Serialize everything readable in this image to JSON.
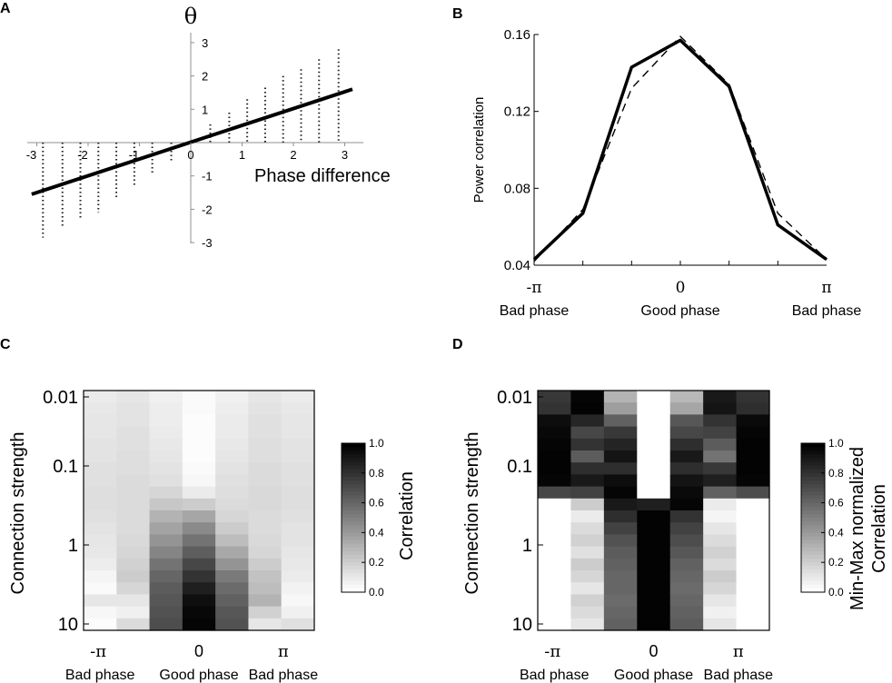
{
  "panels": {
    "A": {
      "letter": "A"
    },
    "B": {
      "letter": "B"
    },
    "C": {
      "letter": "C"
    },
    "D": {
      "letter": "D"
    }
  },
  "colors": {
    "ink": "#000000",
    "background": "#ffffff",
    "axis": "#909090",
    "dots": "#222222"
  },
  "chart_data": [
    {
      "panel": "A",
      "type": "scatter",
      "title": "θ",
      "xlabel": "Phase difference",
      "ylabel": "θ",
      "xlim": [
        -3.1,
        3.15
      ],
      "ylim": [
        -3.1,
        3.3
      ],
      "x_ticks": [
        -3,
        -2,
        -1,
        0,
        1,
        2,
        3
      ],
      "x_tick_labels": [
        "-3",
        "-2",
        "-1",
        "0",
        "1",
        "2",
        "3"
      ],
      "y_ticks": [
        -3,
        -2,
        -1,
        1,
        2,
        3
      ],
      "y_tick_labels": [
        "-3",
        "-2",
        "-1",
        "1",
        "2",
        "3"
      ],
      "scatter_columns": [
        {
          "x": -2.88,
          "y_min": -2.85,
          "y_max": 0.0
        },
        {
          "x": -2.5,
          "y_min": -2.55,
          "y_max": 0.0
        },
        {
          "x": -2.15,
          "y_min": -2.25,
          "y_max": 0.0
        },
        {
          "x": -1.8,
          "y_min": -2.1,
          "y_max": 0.0
        },
        {
          "x": -1.45,
          "y_min": -1.7,
          "y_max": 0.0
        },
        {
          "x": -1.1,
          "y_min": -1.35,
          "y_max": 0.0
        },
        {
          "x": -0.75,
          "y_min": -0.95,
          "y_max": 0.0
        },
        {
          "x": -0.38,
          "y_min": -0.6,
          "y_max": 0.0
        },
        {
          "x": 0.38,
          "y_min": 0.0,
          "y_max": 0.55
        },
        {
          "x": 0.75,
          "y_min": 0.0,
          "y_max": 0.9
        },
        {
          "x": 1.1,
          "y_min": 0.0,
          "y_max": 1.3
        },
        {
          "x": 1.45,
          "y_min": 0.0,
          "y_max": 1.65
        },
        {
          "x": 1.8,
          "y_min": 0.0,
          "y_max": 2.0
        },
        {
          "x": 2.15,
          "y_min": 0.0,
          "y_max": 2.2
        },
        {
          "x": 2.5,
          "y_min": 0.0,
          "y_max": 2.5
        },
        {
          "x": 2.88,
          "y_min": 0.0,
          "y_max": 2.8
        }
      ],
      "fit_line": {
        "x": [
          -3.1,
          3.15
        ],
        "y": [
          -1.55,
          1.6
        ]
      }
    },
    {
      "panel": "B",
      "type": "line",
      "xlabel": "",
      "ylabel": "Power correlation",
      "xlim": [
        -3.14159,
        3.14159
      ],
      "ylim": [
        0.04,
        0.16
      ],
      "y_ticks": [
        0.04,
        0.08,
        0.12,
        0.16
      ],
      "y_tick_labels": [
        "0.04",
        "0.08",
        "0.12",
        "0.16"
      ],
      "x_tick_labels": [
        "-π",
        "0",
        "π"
      ],
      "x_sublabels": [
        "Bad phase",
        "Good phase",
        "Bad phase"
      ],
      "x": [
        -3.14159,
        -2.0944,
        -1.0472,
        0,
        1.0472,
        2.0944,
        3.14159
      ],
      "series": [
        {
          "name": "solid",
          "style": "solid",
          "values": [
            0.043,
            0.067,
            0.143,
            0.157,
            0.133,
            0.061,
            0.043
          ]
        },
        {
          "name": "dashed",
          "style": "dashed",
          "values": [
            0.042,
            0.069,
            0.132,
            0.159,
            0.134,
            0.067,
            0.043
          ]
        }
      ]
    },
    {
      "panel": "C",
      "type": "heatmap",
      "ylabel": "Connection strength",
      "y_tick_labels": [
        "0.01",
        "0.1",
        "1",
        "10"
      ],
      "x_tick_labels": [
        "-π",
        "0",
        "π"
      ],
      "x_sublabels": [
        "Bad phase",
        "Good phase",
        "Bad phase"
      ],
      "colorbar": {
        "label": "Correlation",
        "range": [
          0.0,
          1.0
        ],
        "tick_labels": [
          "0.0",
          "0.2",
          "0.4",
          "0.6",
          "0.8",
          "1.0"
        ]
      },
      "columns": 7,
      "rows": 20,
      "row_labels_note": "rows ordered top (0.01) to bottom (10)",
      "values": [
        [
          0.08,
          0.1,
          0.06,
          0.02,
          0.06,
          0.1,
          0.08
        ],
        [
          0.09,
          0.11,
          0.07,
          0.02,
          0.07,
          0.11,
          0.09
        ],
        [
          0.1,
          0.11,
          0.07,
          0.01,
          0.08,
          0.12,
          0.1
        ],
        [
          0.1,
          0.12,
          0.08,
          0.01,
          0.08,
          0.12,
          0.1
        ],
        [
          0.11,
          0.12,
          0.09,
          0.01,
          0.09,
          0.13,
          0.11
        ],
        [
          0.11,
          0.13,
          0.1,
          0.01,
          0.1,
          0.13,
          0.11
        ],
        [
          0.12,
          0.13,
          0.11,
          0.02,
          0.11,
          0.14,
          0.12
        ],
        [
          0.12,
          0.14,
          0.12,
          0.03,
          0.12,
          0.14,
          0.12
        ],
        [
          0.13,
          0.14,
          0.16,
          0.08,
          0.13,
          0.15,
          0.13
        ],
        [
          0.13,
          0.14,
          0.22,
          0.2,
          0.14,
          0.15,
          0.13
        ],
        [
          0.12,
          0.14,
          0.3,
          0.35,
          0.16,
          0.14,
          0.12
        ],
        [
          0.11,
          0.14,
          0.36,
          0.46,
          0.2,
          0.14,
          0.11
        ],
        [
          0.1,
          0.15,
          0.42,
          0.55,
          0.26,
          0.15,
          0.11
        ],
        [
          0.09,
          0.16,
          0.48,
          0.63,
          0.34,
          0.16,
          0.1
        ],
        [
          0.07,
          0.18,
          0.55,
          0.72,
          0.42,
          0.2,
          0.09
        ],
        [
          0.04,
          0.2,
          0.6,
          0.8,
          0.52,
          0.24,
          0.08
        ],
        [
          0.02,
          0.16,
          0.64,
          0.88,
          0.58,
          0.26,
          0.05
        ],
        [
          0.1,
          0.1,
          0.66,
          0.94,
          0.62,
          0.3,
          0.03
        ],
        [
          0.03,
          0.06,
          0.68,
          0.97,
          0.66,
          0.18,
          0.06
        ],
        [
          0.01,
          0.14,
          0.7,
          0.98,
          0.68,
          0.1,
          0.12
        ]
      ]
    },
    {
      "panel": "D",
      "type": "heatmap",
      "ylabel": "Connection strength",
      "y_tick_labels": [
        "0.01",
        "0.1",
        "1",
        "10"
      ],
      "x_tick_labels": [
        "-π",
        "0",
        "π"
      ],
      "x_sublabels": [
        "Bad phase",
        "Good phase",
        "Bad phase"
      ],
      "colorbar": {
        "label": "Min-Max normalized\nCorrelation",
        "label_lines": [
          "Min-Max normalized",
          "Correlation"
        ],
        "range": [
          0.0,
          1.0
        ],
        "tick_labels": [
          "0.0",
          "0.2",
          "0.4",
          "0.6",
          "0.8",
          "1.0"
        ]
      },
      "columns": 7,
      "rows": 20,
      "values": [
        [
          0.78,
          0.98,
          0.3,
          0.0,
          0.28,
          0.9,
          0.8
        ],
        [
          0.8,
          0.99,
          0.38,
          0.0,
          0.35,
          0.92,
          0.82
        ],
        [
          0.95,
          0.85,
          0.62,
          0.0,
          0.66,
          0.8,
          0.96
        ],
        [
          0.97,
          0.72,
          0.78,
          0.0,
          0.72,
          0.74,
          0.98
        ],
        [
          0.98,
          0.8,
          0.86,
          0.0,
          0.82,
          0.64,
          0.99
        ],
        [
          0.99,
          0.64,
          0.92,
          0.0,
          0.9,
          0.55,
          0.99
        ],
        [
          0.99,
          0.82,
          0.82,
          0.0,
          0.82,
          0.78,
          0.99
        ],
        [
          0.98,
          0.9,
          0.95,
          0.0,
          0.92,
          0.88,
          0.98
        ],
        [
          0.72,
          0.74,
          0.98,
          0.0,
          0.96,
          0.62,
          0.7
        ],
        [
          0.0,
          0.2,
          0.9,
          0.88,
          0.98,
          0.08,
          0.0
        ],
        [
          0.0,
          0.08,
          0.82,
          0.99,
          0.8,
          0.04,
          0.0
        ],
        [
          0.0,
          0.14,
          0.74,
          0.99,
          0.74,
          0.1,
          0.0
        ],
        [
          0.0,
          0.18,
          0.68,
          0.99,
          0.7,
          0.14,
          0.0
        ],
        [
          0.0,
          0.12,
          0.64,
          0.99,
          0.66,
          0.18,
          0.0
        ],
        [
          0.0,
          0.2,
          0.62,
          0.99,
          0.62,
          0.14,
          0.0
        ],
        [
          0.0,
          0.16,
          0.6,
          0.99,
          0.6,
          0.2,
          0.0
        ],
        [
          0.0,
          0.1,
          0.6,
          0.99,
          0.58,
          0.16,
          0.0
        ],
        [
          0.0,
          0.18,
          0.58,
          0.99,
          0.6,
          0.1,
          0.0
        ],
        [
          0.0,
          0.14,
          0.6,
          0.99,
          0.62,
          0.06,
          0.0
        ],
        [
          0.0,
          0.1,
          0.62,
          0.99,
          0.64,
          0.1,
          0.0
        ]
      ]
    }
  ]
}
